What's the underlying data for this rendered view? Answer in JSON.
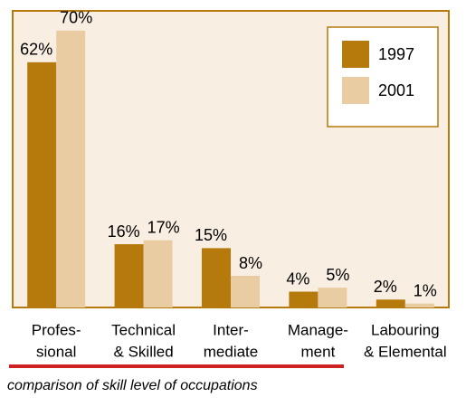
{
  "chart_data": {
    "type": "bar",
    "caption": "comparison of skill level of occupations",
    "categories": [
      [
        "Profes-",
        "sional"
      ],
      [
        "Technical",
        "& Skilled"
      ],
      [
        "Inter-",
        "mediate"
      ],
      [
        "Manage-",
        "ment"
      ],
      [
        "Labouring",
        "& Elemental"
      ]
    ],
    "series": [
      {
        "name": "1997",
        "color": "#b5790c",
        "values": [
          62,
          16,
          15,
          4,
          2
        ],
        "value_labels": [
          "62%",
          "16%",
          "15%",
          "4%",
          "2%"
        ]
      },
      {
        "name": "2001",
        "color": "#e9cca2",
        "values": [
          70,
          17,
          8,
          5,
          1
        ],
        "value_labels": [
          "70%",
          "17%",
          "8%",
          "5%",
          "1%"
        ]
      }
    ],
    "ylim": [
      0,
      75
    ],
    "legend": "top-right"
  }
}
